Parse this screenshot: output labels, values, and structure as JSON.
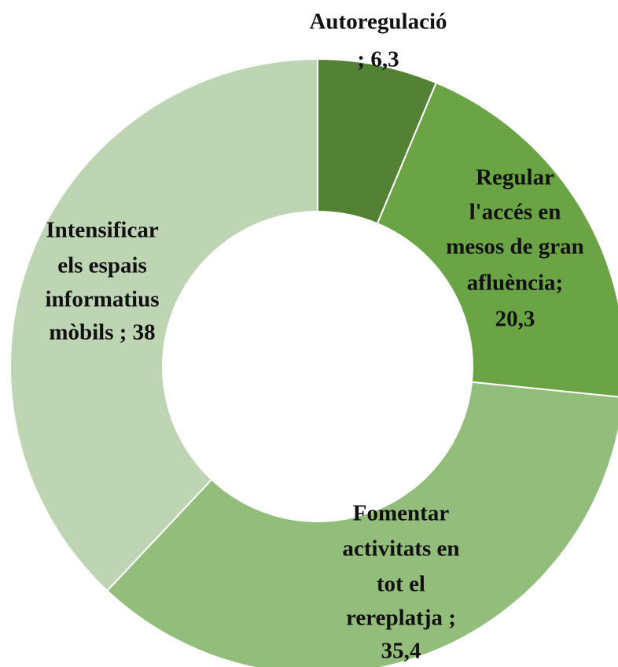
{
  "chart_data": {
    "type": "donut",
    "values": [
      6.3,
      20.3,
      35.4,
      38
    ],
    "value_labels": [
      [
        "Autoregulació",
        "; 6,3"
      ],
      [
        "Regular",
        "l'accés en",
        "mesos de gran",
        "afluència;",
        "20,3"
      ],
      [
        "Fomentar",
        "activitats en",
        "tot el",
        "rereplatja ;",
        "35,4"
      ],
      [
        "Intensificar",
        "els espais",
        "informatius",
        "mòbils ; 38"
      ]
    ],
    "colors": [
      "#548235",
      "#6aa444",
      "#93bd7a",
      "#bdd5b2"
    ]
  }
}
